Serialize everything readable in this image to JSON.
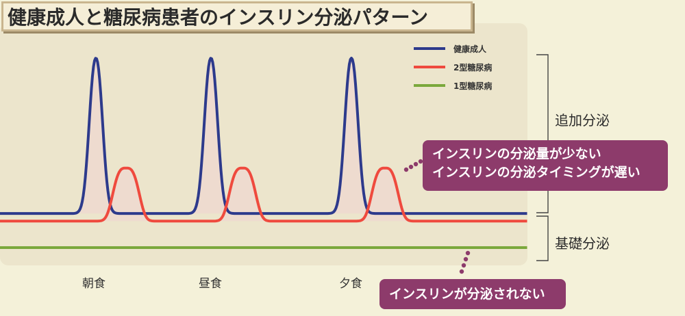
{
  "title": "健康成人と糖尿病患者のインスリン分泌パターン",
  "colors": {
    "healthy": "#2d3a8c",
    "type2": "#ef4a3e",
    "type1": "#7ba83c",
    "callout": "#8d3b6b",
    "panel": "#ece5cc",
    "fill": "#eed9cf"
  },
  "chart_data": {
    "type": "line",
    "xlabel": "",
    "ylabel": "",
    "x_ticks": [
      "朝食",
      "昼食",
      "夕食"
    ],
    "series": [
      {
        "name": "健康成人",
        "baseline": 0.18,
        "peak_height": 1.0,
        "peak_times": [
          "朝食",
          "昼食",
          "夕食"
        ],
        "timing": "meal"
      },
      {
        "name": "2型糖尿病",
        "baseline": 0.14,
        "peak_height": 0.42,
        "peak_times": [
          "朝食",
          "昼食",
          "夕食"
        ],
        "timing": "delayed"
      },
      {
        "name": "1型糖尿病",
        "baseline": 0.0,
        "peak_height": 0.0,
        "peak_times": [],
        "timing": "none"
      }
    ],
    "legend_position": "top-right",
    "grid": false
  },
  "legend": {
    "healthy": "健康成人",
    "type2": "2型糖尿病",
    "type1": "1型糖尿病"
  },
  "meals": {
    "breakfast": "朝食",
    "lunch": "昼食",
    "dinner": "夕食"
  },
  "phases": {
    "additional": "追加分泌",
    "basal": "基礎分泌"
  },
  "callouts": {
    "type2_line1": "インスリンの分泌量が少ない",
    "type2_line2": "インスリンの分泌タイミングが遅い",
    "type1": "インスリンが分泌されない"
  }
}
